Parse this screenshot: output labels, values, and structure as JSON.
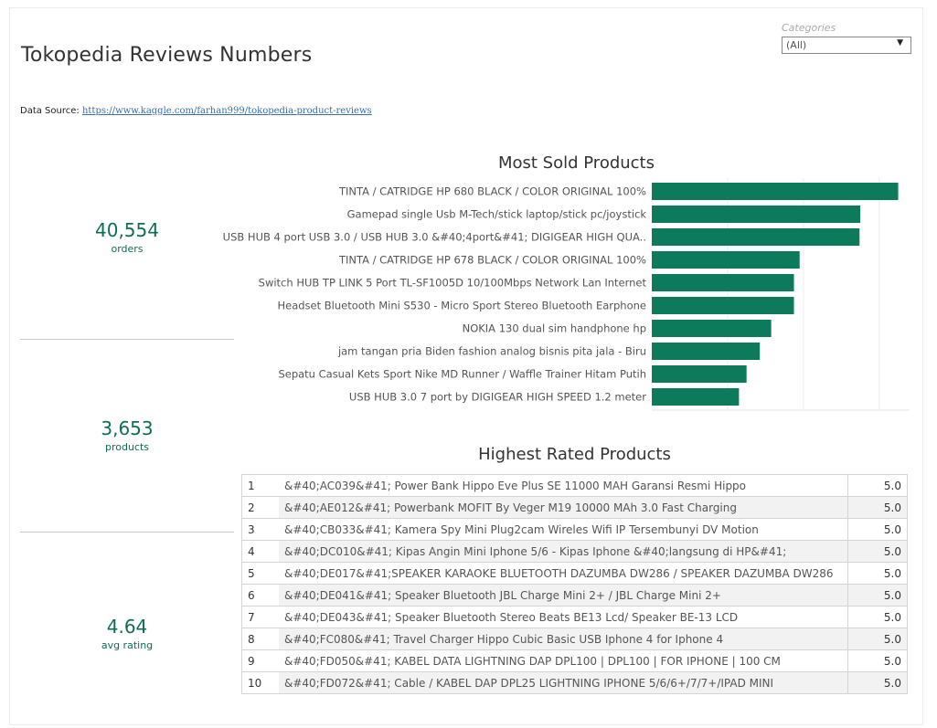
{
  "header": {
    "title": "Tokopedia Reviews Numbers",
    "source_label": "Data Source:",
    "source_link": "https://www.kaggle.com/farhan999/tokopedia-product-reviews"
  },
  "filter": {
    "label": "Categories",
    "value": "(All)"
  },
  "kpis": [
    {
      "value": "40,554",
      "label": "orders"
    },
    {
      "value": "3,653",
      "label": "products"
    },
    {
      "value": "4.64",
      "label": "avg rating"
    }
  ],
  "colors": {
    "accent": "#0e7a5c",
    "kpi_text": "#0e6e54"
  },
  "chart_data": [
    {
      "type": "bar",
      "orientation": "horizontal",
      "title": "Most Sold Products",
      "categories": [
        "TINTA / CATRIDGE HP 680 BLACK / COLOR ORIGINAL 100%",
        "Gamepad single Usb M-Tech/stick laptop/stick pc/joystick",
        "USB HUB 4 port USB 3.0 / USB HUB 3.0 &#40;4port&#41; DIGIGEAR HIGH QUA..",
        "TINTA / CATRIDGE HP 678 BLACK / COLOR ORIGINAL 100%",
        "Switch HUB TP LINK 5 Port TL-SF1005D 10/100Mbps Network Lan Internet",
        "Headset Bluetooth Mini S530 - Micro Sport Stereo Bluetooth Earphone",
        "NOKIA 130 dual sim handphone hp",
        "jam tangan pria Biden fashion analog bisnis pita jala - Biru",
        "Sepatu Casual Kets Sport Nike MD Runner / Waffle Trainer Hitam Putih",
        "USB HUB 3.0 7 port by DIGIGEAR HIGH SPEED 1.2 meter"
      ],
      "values": [
        650,
        550,
        548,
        390,
        375,
        375,
        315,
        285,
        250,
        230
      ],
      "xlim": [
        0,
        680
      ],
      "grid": true,
      "color": "#0e7a5c"
    },
    {
      "type": "table",
      "title": "Highest Rated Products",
      "rows": [
        {
          "rank": "1",
          "name": "&#40;AC039&#41; Power Bank Hippo Eve Plus SE 11000 MAH Garansi Resmi Hippo",
          "rating": "5.0"
        },
        {
          "rank": "2",
          "name": "&#40;AE012&#41; Powerbank MOFIT By Veger M19 10000 MAh 3.0 Fast Charging",
          "rating": "5.0"
        },
        {
          "rank": "3",
          "name": "&#40;CB033&#41; Kamera Spy Mini Plug2cam Wireles Wifi IP Tersembunyi DV Motion",
          "rating": "5.0"
        },
        {
          "rank": "4",
          "name": "&#40;DC010&#41; Kipas Angin Mini Iphone 5/6 - Kipas Iphone &#40;langsung di HP&#41;",
          "rating": "5.0"
        },
        {
          "rank": "5",
          "name": "&#40;DE017&#41;SPEAKER KARAOKE BLUETOOTH DAZUMBA DW286 / SPEAKER DAZUMBA DW286",
          "rating": "5.0"
        },
        {
          "rank": "6",
          "name": "&#40;DE041&#41; Speaker Bluetooth JBL Charge Mini 2+ / JBL Charge Mini 2+",
          "rating": "5.0"
        },
        {
          "rank": "7",
          "name": "&#40;DE043&#41; Speaker Bluetooth Stereo Beats BE13 Lcd/ Speaker BE-13 LCD",
          "rating": "5.0"
        },
        {
          "rank": "8",
          "name": "&#40;FC080&#41; Travel Charger Hippo Cubic Basic USB Iphone 4 for Iphone 4",
          "rating": "5.0"
        },
        {
          "rank": "9",
          "name": "&#40;FD050&#41; KABEL DATA LIGHTNING DAP DPL100 | DPL100 | FOR IPHONE | 100 CM",
          "rating": "5.0"
        },
        {
          "rank": "10",
          "name": "&#40;FD072&#41; Cable / KABEL DAP DPL25 LIGHTNING IPHONE 5/6/6+/7/7+/IPAD MINI",
          "rating": "5.0"
        }
      ]
    }
  ]
}
